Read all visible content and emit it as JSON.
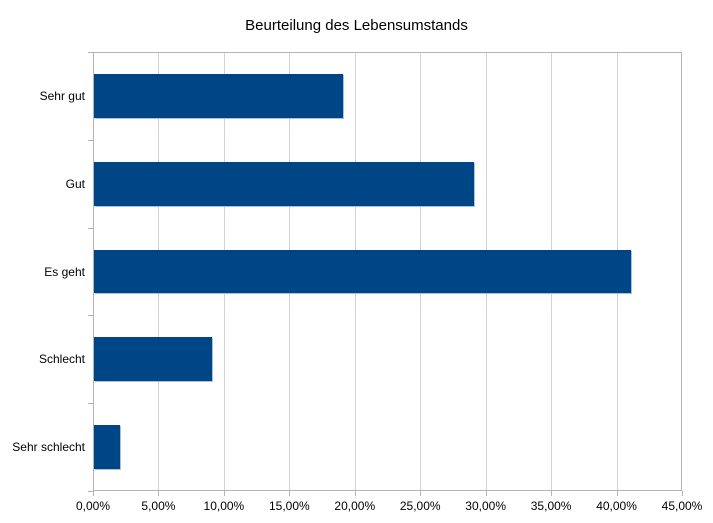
{
  "title": "Beurteilung des Lebensumstands",
  "chart_data": {
    "type": "bar",
    "orientation": "horizontal",
    "title": "Beurteilung des Lebensumstands",
    "categories": [
      "Sehr gut",
      "Gut",
      "Es geht",
      "Schlecht",
      "Sehr schlecht"
    ],
    "values": [
      19,
      29,
      41,
      9,
      2
    ],
    "value_unit": "percent",
    "xlabel": "",
    "ylabel": "",
    "xlim": [
      0,
      45
    ],
    "x_tick_step": 5,
    "x_tick_labels": [
      "0,00%",
      "5,00%",
      "10,00%",
      "15,00%",
      "20,00%",
      "25,00%",
      "30,00%",
      "35,00%",
      "40,00%",
      "45,00%"
    ],
    "grid": true,
    "legend": false,
    "colors": {
      "bar": "#004586",
      "bar_edge": "#a8c2dc",
      "gridline": "#d3d3d3",
      "axis": "#b3b3b3",
      "text": "#000000",
      "background": "#ffffff"
    }
  }
}
